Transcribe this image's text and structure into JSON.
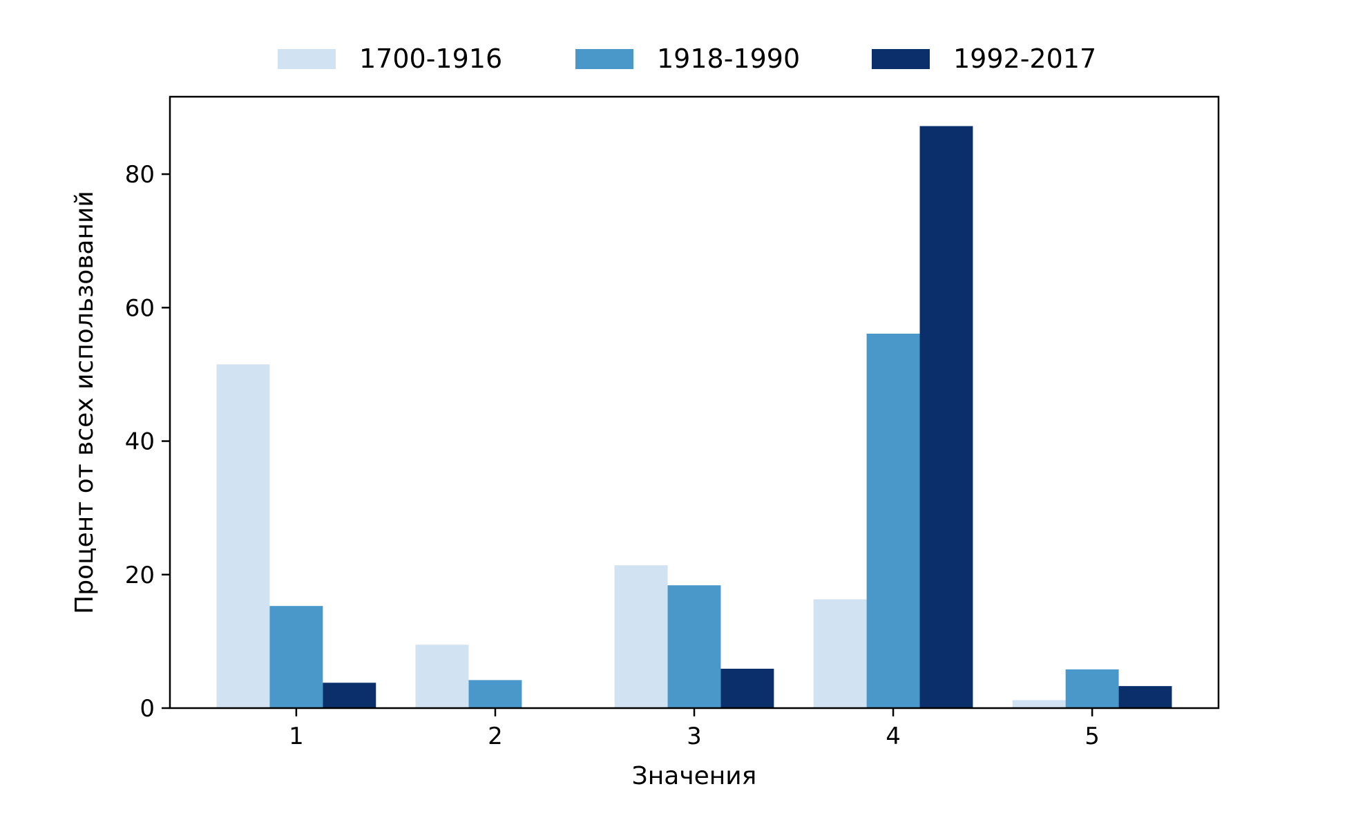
{
  "chart_data": {
    "type": "bar",
    "title": "",
    "xlabel": "Значения",
    "ylabel": "Процент от всех использований",
    "categories": [
      "1",
      "2",
      "3",
      "4",
      "5"
    ],
    "series": [
      {
        "name": "1700-1916",
        "color": "#d1e2f2",
        "values": [
          51.5,
          9.5,
          21.4,
          16.3,
          1.2
        ]
      },
      {
        "name": "1918-1990",
        "color": "#4a98c9",
        "values": [
          15.3,
          4.2,
          18.4,
          56.1,
          5.8
        ]
      },
      {
        "name": "1992-2017",
        "color": "#0a2f6b",
        "values": [
          3.8,
          0.0,
          5.9,
          87.2,
          3.3
        ]
      }
    ],
    "yticks": [
      0,
      20,
      40,
      60,
      80
    ],
    "ylim": [
      0,
      91.6
    ],
    "grid": false,
    "legend_position": "top-center"
  }
}
